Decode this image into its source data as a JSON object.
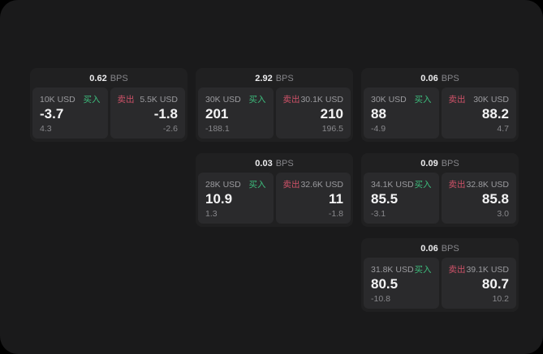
{
  "labels": {
    "buy": "买入",
    "sell": "卖出",
    "bps": "BPS"
  },
  "colors": {
    "buy": "#3dbd7d",
    "sell": "#cf5268"
  },
  "cards": [
    {
      "row": 1,
      "col": 1,
      "bps": "0.62",
      "buy": {
        "notional": "10K USD",
        "value": "-3.7",
        "delta": "4.3"
      },
      "sell": {
        "notional": "5.5K USD",
        "value": "-1.8",
        "delta": "-2.6"
      }
    },
    {
      "row": 1,
      "col": 2,
      "bps": "2.92",
      "buy": {
        "notional": "30K USD",
        "value": "201",
        "delta": "-188.1"
      },
      "sell": {
        "notional": "30.1K USD",
        "value": "210",
        "delta": "196.5"
      }
    },
    {
      "row": 1,
      "col": 3,
      "bps": "0.06",
      "buy": {
        "notional": "30K USD",
        "value": "88",
        "delta": "-4.9"
      },
      "sell": {
        "notional": "30K USD",
        "value": "88.2",
        "delta": "4.7"
      }
    },
    {
      "row": 2,
      "col": 2,
      "bps": "0.03",
      "buy": {
        "notional": "28K USD",
        "value": "10.9",
        "delta": "1.3"
      },
      "sell": {
        "notional": "32.6K USD",
        "value": "11",
        "delta": "-1.8"
      }
    },
    {
      "row": 2,
      "col": 3,
      "bps": "0.09",
      "buy": {
        "notional": "34.1K USD",
        "value": "85.5",
        "delta": "-3.1"
      },
      "sell": {
        "notional": "32.8K USD",
        "value": "85.8",
        "delta": "3.0"
      }
    },
    {
      "row": 3,
      "col": 3,
      "bps": "0.06",
      "buy": {
        "notional": "31.8K USD",
        "value": "80.5",
        "delta": "-10.8"
      },
      "sell": {
        "notional": "39.1K USD",
        "value": "80.7",
        "delta": "10.2"
      }
    }
  ]
}
